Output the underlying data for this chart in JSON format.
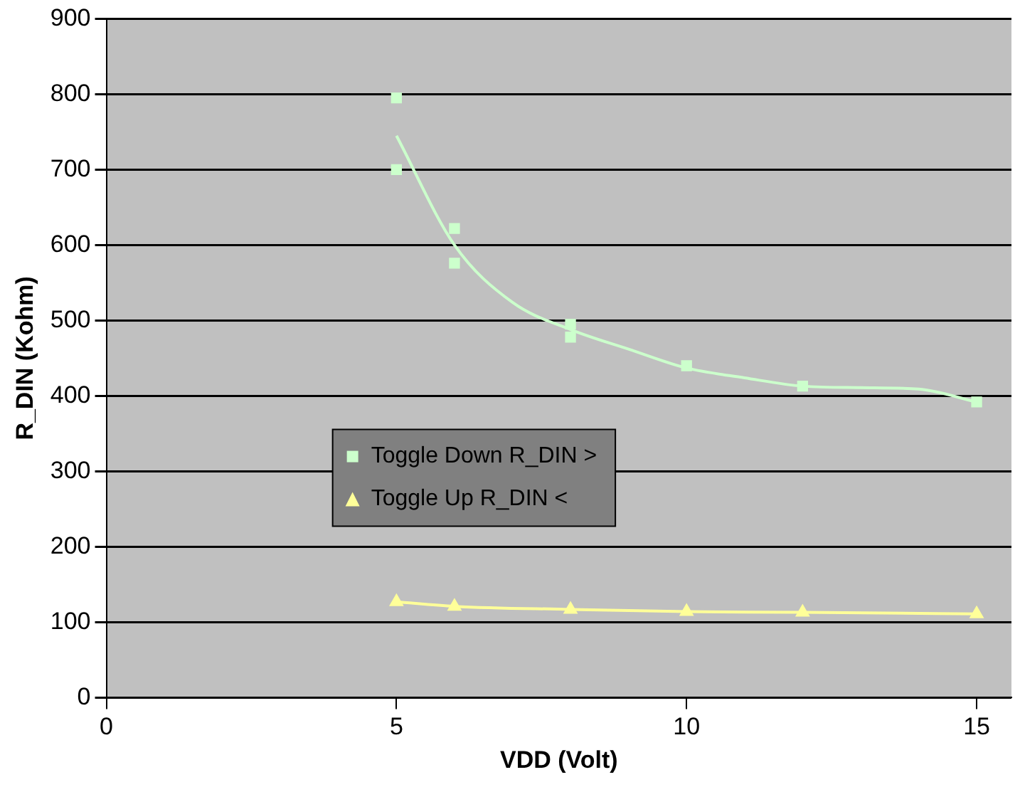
{
  "chart_data": {
    "type": "scatter",
    "xlabel": "VDD (Volt)",
    "ylabel": "R_DIN (Kohm)",
    "xlim": [
      0,
      15.6
    ],
    "xticks": [
      0,
      5,
      10,
      15
    ],
    "ylim": [
      0,
      900
    ],
    "yticks": [
      0,
      100,
      200,
      300,
      400,
      500,
      600,
      700,
      800,
      900
    ],
    "grid": "y",
    "legend": "left",
    "series": [
      {
        "name": "Toggle Down R_DIN >",
        "type": "scatter",
        "marker": "square",
        "color": "#ccffcc",
        "x": [
          5,
          5,
          6,
          6,
          8,
          8,
          10,
          12,
          15
        ],
        "values": [
          795,
          700,
          622,
          576,
          495,
          478,
          440,
          413,
          392
        ]
      },
      {
        "type": "line",
        "marker": "none",
        "color": "#ccffcc",
        "x": [
          5,
          6,
          7,
          8,
          9,
          10,
          11,
          12,
          13,
          14,
          15
        ],
        "values": [
          745,
          600,
          524,
          488,
          462,
          437,
          424,
          413,
          411,
          409,
          392
        ]
      },
      {
        "name": "Toggle Up R_DIN <",
        "type": "line",
        "marker": "triangle",
        "color": "#ffff99",
        "x": [
          5,
          6,
          8,
          10,
          12,
          15
        ],
        "values": [
          127,
          121,
          117,
          114,
          113,
          111
        ]
      }
    ]
  }
}
